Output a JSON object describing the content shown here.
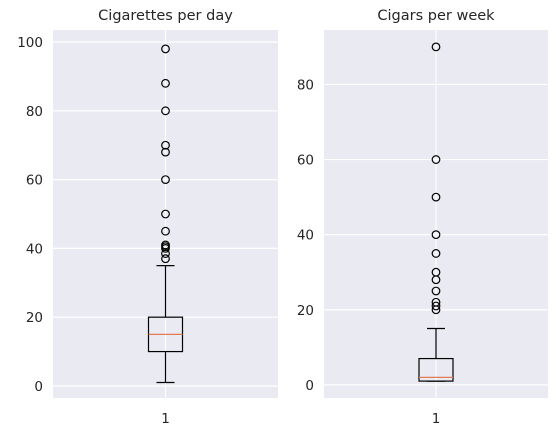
{
  "chart_data": [
    {
      "type": "box",
      "title": "Cigarettes per day",
      "xlabel": "",
      "ylabel": "",
      "categories": [
        "1"
      ],
      "ylim": [
        -3.5,
        103.5
      ],
      "yticks": [
        0,
        20,
        40,
        60,
        80,
        100
      ],
      "grid": true,
      "box": {
        "min": 1,
        "q1": 10,
        "median": 15,
        "q3": 20,
        "max": 35
      },
      "outliers": [
        37,
        38.5,
        40,
        40.5,
        41,
        45,
        50,
        60,
        68,
        70,
        80,
        88,
        98
      ]
    },
    {
      "type": "box",
      "title": "Cigars per week",
      "xlabel": "",
      "ylabel": "",
      "categories": [
        "1"
      ],
      "ylim": [
        -3.5,
        94.5
      ],
      "yticks": [
        0,
        20,
        40,
        60,
        80
      ],
      "grid": true,
      "box": {
        "min": 1,
        "q1": 1,
        "median": 2,
        "q3": 7,
        "max": 15
      },
      "outliers": [
        20,
        21,
        22,
        25,
        28,
        30,
        35,
        40,
        50,
        60,
        90
      ]
    }
  ],
  "colors": {
    "background": "#eaeaf2",
    "grid": "#ffffff",
    "median": "#e07b54",
    "box": "#000000",
    "text": "#262626"
  }
}
